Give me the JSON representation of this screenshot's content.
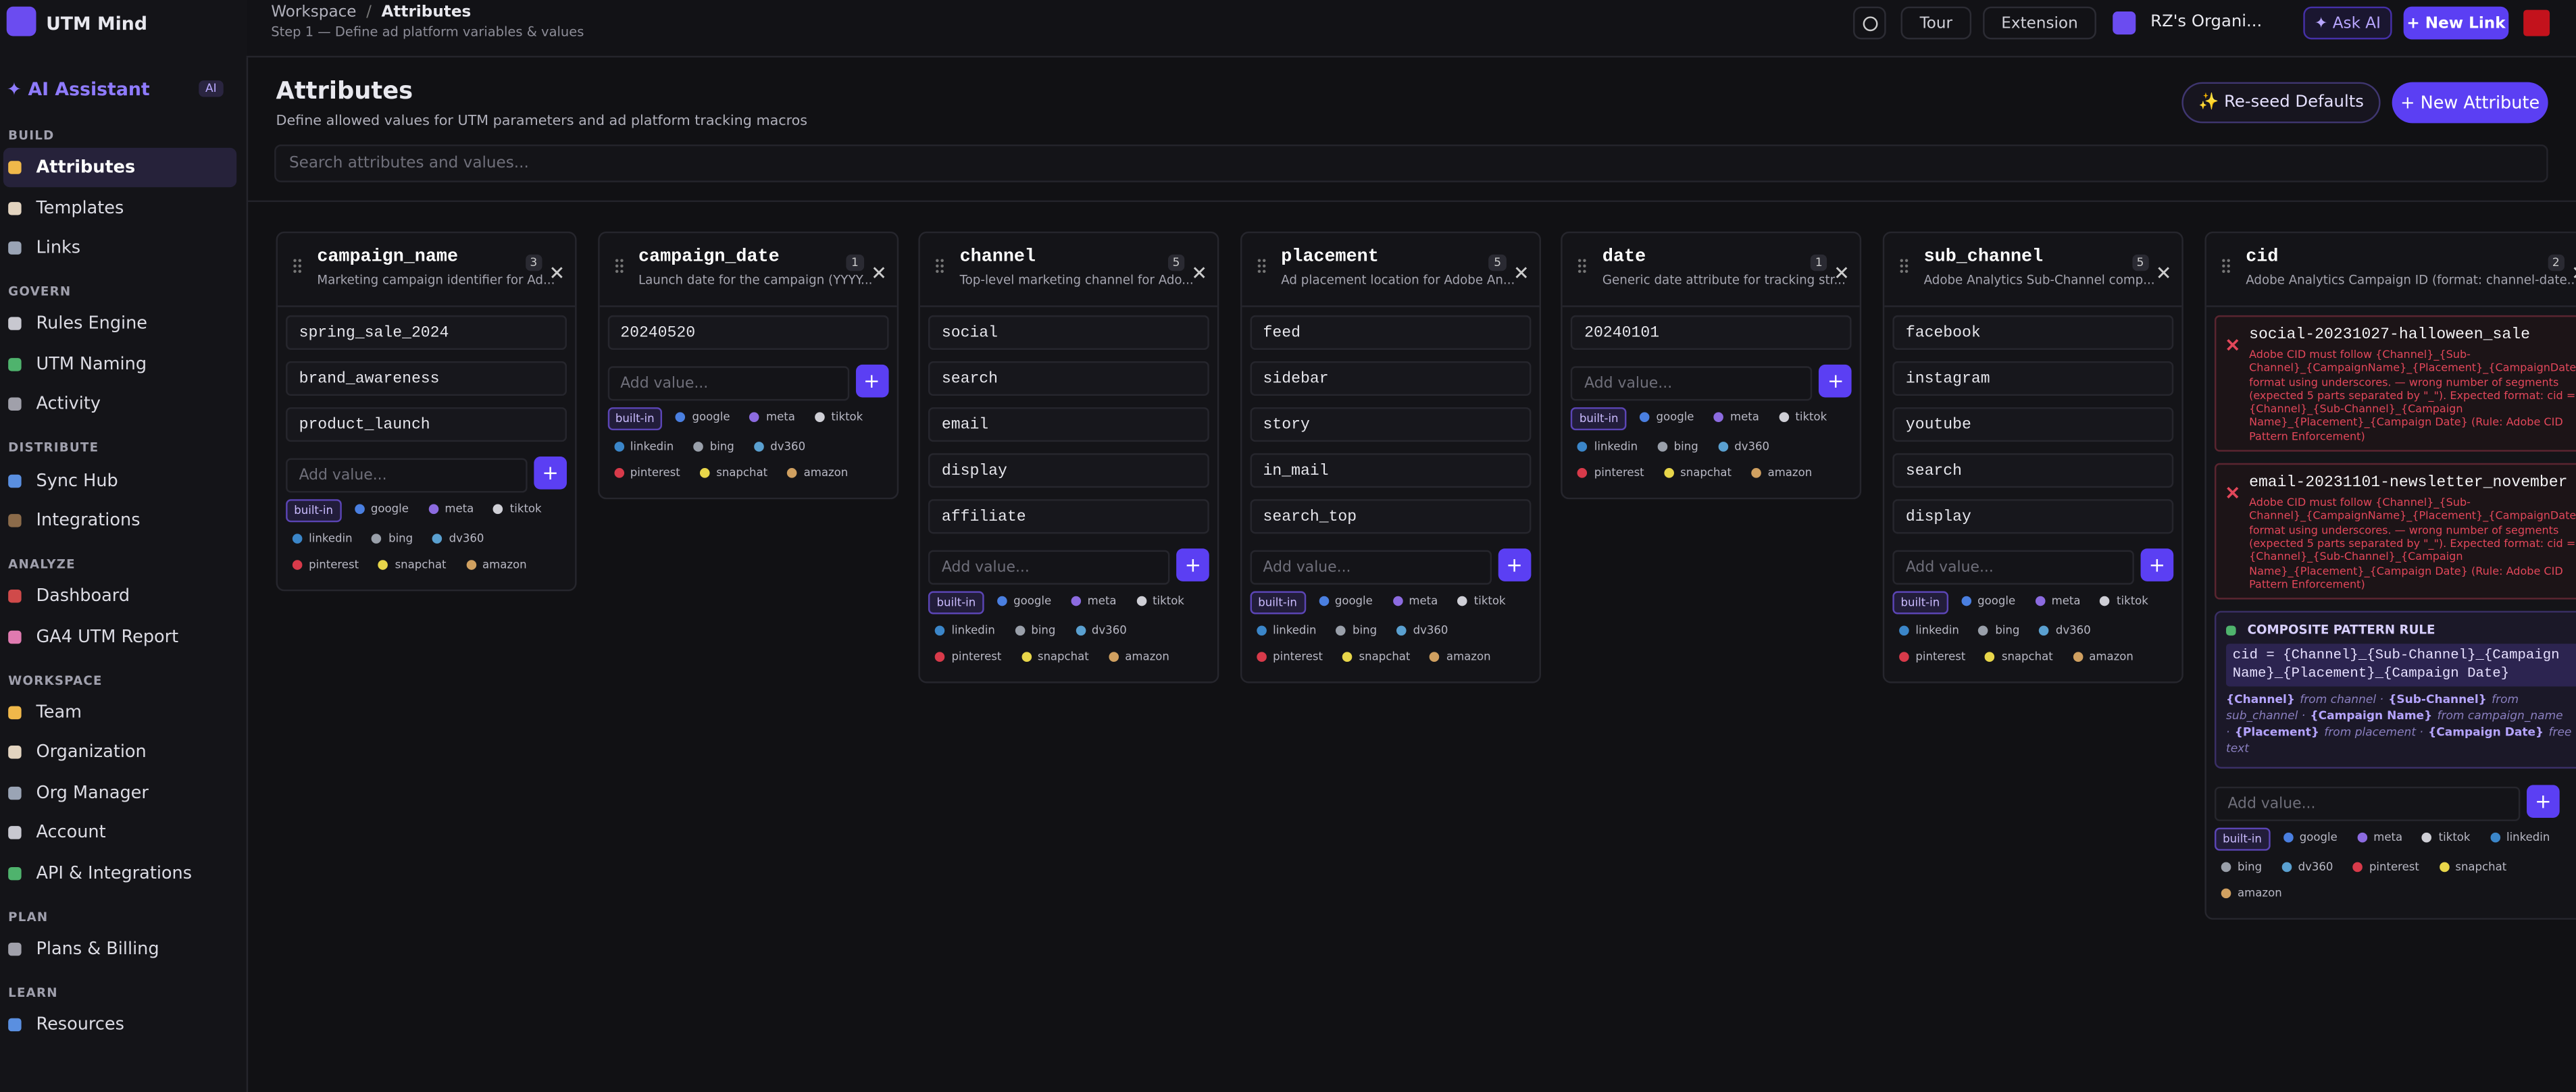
{
  "app": {
    "name": "UTM Mind"
  },
  "topbar": {
    "breadcrumb_root": "Workspace",
    "breadcrumb_sep": "/",
    "breadcrumb_current": "Attributes",
    "subtitle": "Step 1 — Define ad platform variables & values",
    "tour": "Tour",
    "extension": "Extension",
    "org": "RZ's Organi...",
    "ask_ai": "✦ Ask AI",
    "new_link": "+ New Link"
  },
  "sidebar": {
    "assistant": "✦ AI Assistant",
    "assistant_badge": "AI",
    "sections": [
      {
        "title": "BUILD",
        "items": [
          "Attributes",
          "Templates",
          "Links"
        ]
      },
      {
        "title": "GOVERN",
        "items": [
          "Rules Engine",
          "UTM Naming",
          "Activity"
        ]
      },
      {
        "title": "DISTRIBUTE",
        "items": [
          "Sync Hub",
          "Integrations"
        ]
      },
      {
        "title": "ANALYZE",
        "items": [
          "Dashboard",
          "GA4 UTM Report"
        ]
      },
      {
        "title": "WORKSPACE",
        "items": [
          "Team",
          "Organization",
          "Org Manager",
          "Account",
          "API & Integrations"
        ]
      },
      {
        "title": "PLAN",
        "items": [
          "Plans & Billing"
        ]
      },
      {
        "title": "LEARN",
        "items": [
          "Resources"
        ]
      }
    ]
  },
  "header": {
    "title": "Attributes",
    "subtitle": "Define allowed values for UTM parameters and ad platform tracking macros",
    "reseed": "✨ Re-seed Defaults",
    "new_attribute": "+ New Attribute",
    "search": "Search attributes and values..."
  },
  "placeholder": "Add value...",
  "add_button": "+",
  "tags": [
    "built-in",
    "google",
    "meta",
    "tiktok",
    "linkedin",
    "bing",
    "dv360",
    "pinterest",
    "snapchat",
    "amazon"
  ],
  "columns": [
    {
      "name": "campaign_name",
      "description": "Marketing campaign identifier for Ad...",
      "count": 3,
      "values": [
        "spring_sale_2024",
        "brand_awareness",
        "product_launch"
      ]
    },
    {
      "name": "campaign_date",
      "description": "Launch date for the campaign (YYYY...",
      "count": 1,
      "values": [
        "20240520"
      ]
    },
    {
      "name": "channel",
      "description": "Top-level marketing channel for Ado...",
      "count": 5,
      "values": [
        "social",
        "search",
        "email",
        "display",
        "affiliate"
      ]
    },
    {
      "name": "placement",
      "description": "Ad placement location for Adobe An...",
      "count": 5,
      "values": [
        "feed",
        "sidebar",
        "story",
        "in_mail",
        "search_top"
      ]
    },
    {
      "name": "date",
      "description": "Generic date attribute for tracking str...",
      "count": 1,
      "values": [
        "20240101"
      ]
    },
    {
      "name": "sub_channel",
      "description": "Adobe Analytics Sub-Channel comp...",
      "count": 5,
      "values": [
        "facebook",
        "instagram",
        "youtube",
        "search",
        "display"
      ]
    }
  ],
  "cid": {
    "name": "cid",
    "description": "Adobe Analytics Campaign ID (format: channel-date...",
    "count": 2,
    "errors": [
      {
        "value": "social-20231027-halloween_sale",
        "message": "Adobe CID must follow {Channel}_{Sub-Channel}_{CampaignName}_{Placement}_{CampaignDate} format using underscores. — wrong number of segments (expected 5 parts separated by \"_\"). Expected format: cid = {Channel}_{Sub-Channel}_{Campaign Name}_{Placement}_{Campaign Date} (Rule: Adobe CID Pattern Enforcement)"
      },
      {
        "value": "email-20231101-newsletter_november",
        "message": "Adobe CID must follow {Channel}_{Sub-Channel}_{CampaignName}_{Placement}_{CampaignDate} format using underscores. — wrong number of segments (expected 5 parts separated by \"_\"). Expected format: cid = {Channel}_{Sub-Channel}_{Campaign Name}_{Placement}_{Campaign Date} (Rule: Adobe CID Pattern Enforcement)"
      }
    ],
    "rule_title": "COMPOSITE PATTERN RULE",
    "rule_pattern": "cid = {Channel}_{Sub-Channel}_{Campaign Name}_{Placement}_{Campaign Date}",
    "rule_parts": [
      {
        "token": "{Channel}",
        "text": "from channel ·"
      },
      {
        "token": "{Sub-Channel}",
        "text": "from sub_channel ·"
      },
      {
        "token": "{Campaign Name}",
        "text": "from campaign_name ·"
      },
      {
        "token": "{Placement}",
        "text": "from placement ·"
      },
      {
        "token": "{Campaign Date}",
        "text": "free text"
      }
    ]
  }
}
